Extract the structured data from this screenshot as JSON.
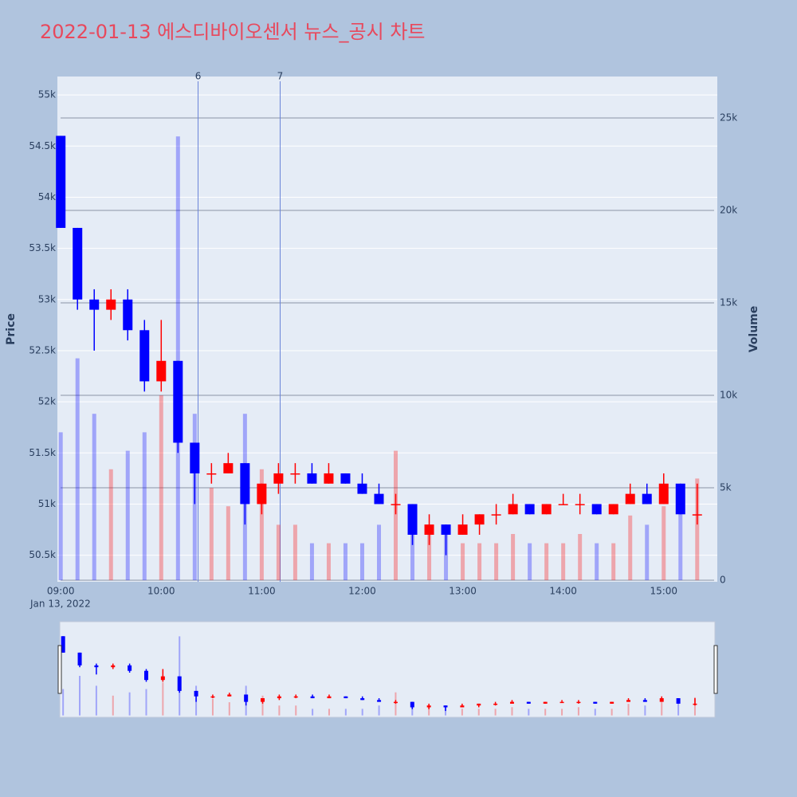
{
  "chart_data": {
    "type": "candlestick",
    "title": "2022-01-13 에스디바이오센서 뉴스_공시 차트",
    "y_label": "Price",
    "y2_label": "Volume",
    "x_date_label": "Jan 13, 2022",
    "increasing_color": "#ff0000",
    "decreasing_color": "#0000ff",
    "x": [
      "09:00",
      "09:10",
      "09:20",
      "09:30",
      "09:40",
      "09:50",
      "10:00",
      "10:10",
      "10:20",
      "10:30",
      "10:40",
      "10:50",
      "11:00",
      "11:10",
      "11:20",
      "11:30",
      "11:40",
      "11:50",
      "12:00",
      "12:10",
      "12:20",
      "12:30",
      "12:40",
      "12:50",
      "13:00",
      "13:10",
      "13:20",
      "13:30",
      "13:40",
      "13:50",
      "14:00",
      "14:10",
      "14:20",
      "14:30",
      "14:40",
      "14:50",
      "15:00",
      "15:10",
      "15:20"
    ],
    "open": [
      54600,
      53700,
      53000,
      52900,
      53000,
      52700,
      52200,
      52400,
      51600,
      51300,
      51300,
      51400,
      51000,
      51200,
      51300,
      51300,
      51200,
      51300,
      51200,
      51100,
      51000,
      51000,
      50700,
      50800,
      50700,
      50800,
      50900,
      50900,
      51000,
      50900,
      51000,
      51000,
      51000,
      50900,
      51000,
      51100,
      51000,
      51200,
      50900
    ],
    "high": [
      54600,
      53700,
      53100,
      53100,
      53100,
      52800,
      52800,
      52400,
      51600,
      51400,
      51500,
      51400,
      51200,
      51400,
      51400,
      51400,
      51400,
      51300,
      51300,
      51200,
      51100,
      51000,
      50900,
      50800,
      50900,
      50900,
      51000,
      51100,
      51000,
      51000,
      51100,
      51100,
      51000,
      51000,
      51200,
      51200,
      51300,
      51200,
      51200
    ],
    "low": [
      53700,
      52900,
      52500,
      52800,
      52600,
      52100,
      52100,
      51500,
      51000,
      51200,
      51300,
      50800,
      50900,
      51100,
      51200,
      51200,
      51200,
      51200,
      51100,
      51000,
      50900,
      50600,
      50600,
      50500,
      50700,
      50700,
      50800,
      50900,
      50900,
      50900,
      51000,
      50900,
      50900,
      50900,
      51000,
      51000,
      51000,
      50900,
      50800
    ],
    "close": [
      53700,
      53000,
      52900,
      53000,
      52700,
      52200,
      52400,
      51600,
      51300,
      51300,
      51400,
      51000,
      51200,
      51300,
      51300,
      51200,
      51300,
      51200,
      51100,
      51000,
      51000,
      50700,
      50800,
      50700,
      50800,
      50900,
      50900,
      51000,
      50900,
      51000,
      51000,
      51000,
      50900,
      51000,
      51100,
      51000,
      51200,
      50900,
      50900
    ],
    "volume": [
      8000,
      12000,
      9000,
      6000,
      7000,
      8000,
      10000,
      24000,
      9000,
      5000,
      4000,
      9000,
      6000,
      3000,
      3000,
      2000,
      2000,
      2000,
      2000,
      3000,
      7000,
      4000,
      3000,
      2500,
      2000,
      2000,
      2000,
      2500,
      2000,
      2000,
      2000,
      2500,
      2000,
      2000,
      3500,
      3000,
      4000,
      5000,
      5500
    ],
    "xlim": [
      "08:58",
      "15:32"
    ],
    "xticks": [
      "09:00",
      "10:00",
      "11:00",
      "12:00",
      "13:00",
      "14:00",
      "15:00"
    ],
    "ylim": [
      50240,
      55180
    ],
    "yticks": [
      {
        "value": 50500,
        "label": "50.5k"
      },
      {
        "value": 51000,
        "label": "51k"
      },
      {
        "value": 51500,
        "label": "51.5k"
      },
      {
        "value": 52000,
        "label": "52k"
      },
      {
        "value": 52500,
        "label": "52.5k"
      },
      {
        "value": 53000,
        "label": "53k"
      },
      {
        "value": 53500,
        "label": "53.5k"
      },
      {
        "value": 54000,
        "label": "54k"
      },
      {
        "value": 54500,
        "label": "54.5k"
      },
      {
        "value": 55000,
        "label": "55k"
      }
    ],
    "y2lim": [
      -86,
      27240
    ],
    "y2ticks": [
      0,
      {
        "value": 5000,
        "label": "5k"
      },
      {
        "value": 10000,
        "label": "10k"
      },
      {
        "value": 15000,
        "label": "15k"
      },
      {
        "value": 20000,
        "label": "20k"
      },
      {
        "value": 25000,
        "label": "25k"
      }
    ],
    "annotations": [
      {
        "x": "10:22",
        "text": "6"
      },
      {
        "x": "11:11",
        "text": "7"
      }
    ]
  }
}
